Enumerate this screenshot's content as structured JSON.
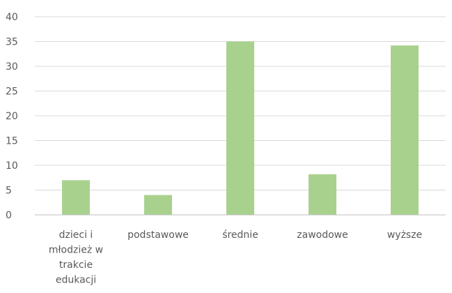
{
  "chart_data": {
    "type": "bar",
    "categories": [
      [
        "dzieci i",
        "młodzież w",
        "trakcie",
        "edukacji"
      ],
      [
        "podstawowe"
      ],
      [
        "średnie"
      ],
      [
        "zawodowe"
      ],
      [
        "wyższe"
      ]
    ],
    "values": [
      7,
      4,
      35,
      8.2,
      34.2
    ],
    "ylim": [
      0,
      40
    ],
    "yticks": [
      0,
      5,
      10,
      15,
      20,
      25,
      30,
      35,
      40
    ],
    "grid": true,
    "legend": "none",
    "colors": {
      "bar": "#a9d18e",
      "grid": "#d9d9d9",
      "axis": "#bfbfbf",
      "text": "#595959"
    }
  }
}
